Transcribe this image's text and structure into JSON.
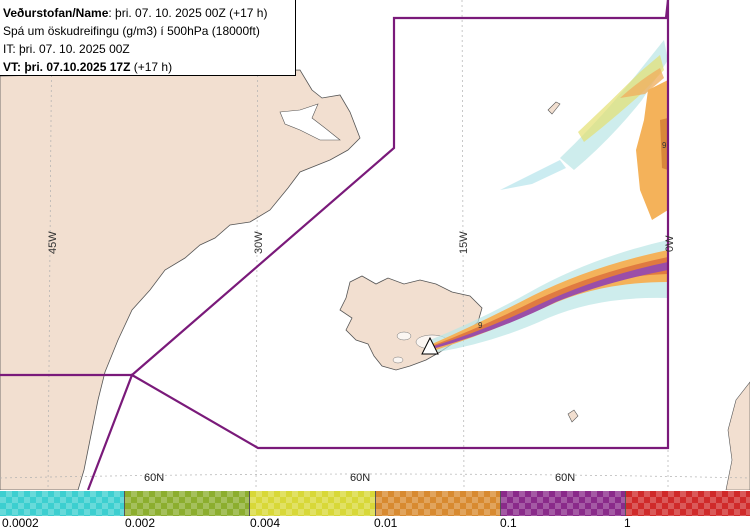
{
  "header": {
    "line1_bold": "Veðurstofan/Name",
    "line1_rest": ": þri. 07. 10. 2025 00Z (+17 h)",
    "line2": "Spá um öskudreifingu (g/m3) í 500hPa (18000ft)",
    "line3": "IT: þri. 07. 10. 2025 00Z",
    "line4_bold": "VT: þri. 07.10.2025 17Z",
    "line4_rest": " (+17 h)"
  },
  "map": {
    "longitude_labels": [
      "45W",
      "30W",
      "15W",
      "0W"
    ],
    "latitude_labels": [
      "60N",
      "60N",
      "60N"
    ],
    "contour_label": "9",
    "colors": {
      "land": "#f2dfd0",
      "sea": "#ffffff",
      "boundary": "#7a1a7a",
      "grid": "#b0b0b0"
    }
  },
  "legend": {
    "ticks": [
      "0.0002",
      "0.002",
      "0.004",
      "0.01",
      "0.1",
      "1"
    ],
    "colors": [
      "#3ccfd0",
      "#8cae2e",
      "#d8d838",
      "#d88a30",
      "#8a2a8a",
      "#d02a2a"
    ]
  }
}
